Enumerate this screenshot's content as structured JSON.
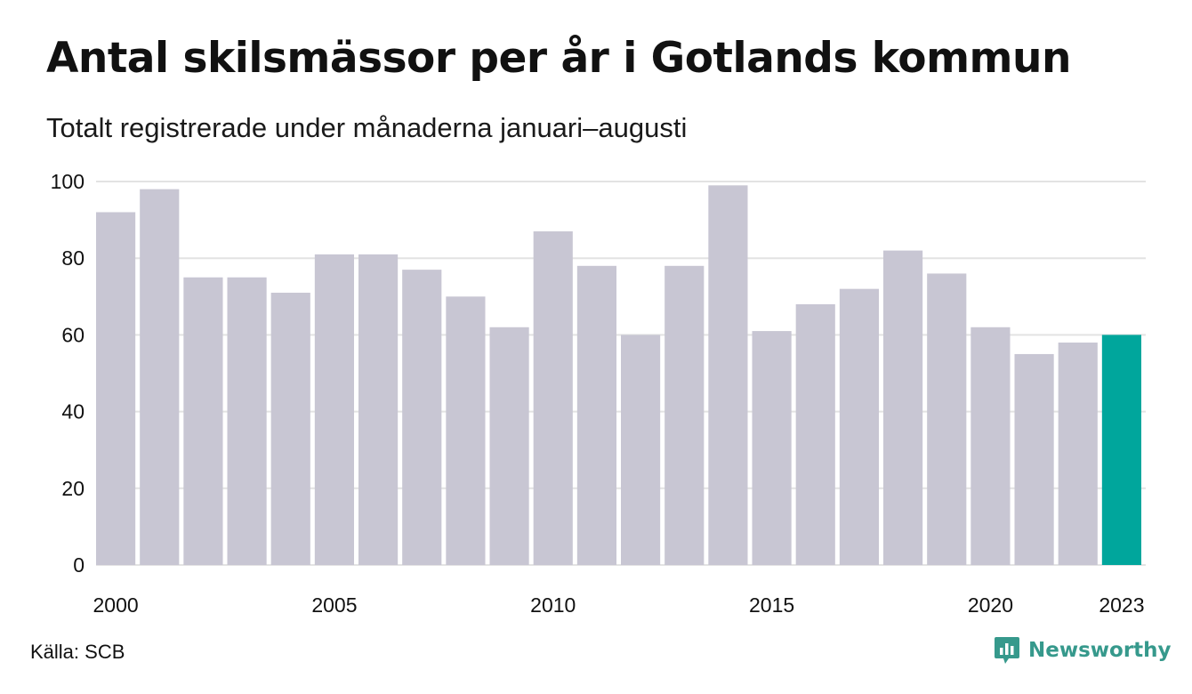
{
  "title": "Antal skilsmässor per år i Gotlands kommun",
  "subtitle": "Totalt registrerade under månaderna januari–augusti",
  "source": "Källa: SCB",
  "brand": "Newsworthy",
  "colors": {
    "bar": "#c8c6d3",
    "highlight": "#00a69c",
    "grid": "#e3e3e3",
    "brand": "#36998c"
  },
  "chart_data": {
    "type": "bar",
    "title": "Antal skilsmässor per år i Gotlands kommun",
    "subtitle": "Totalt registrerade under månaderna januari–augusti",
    "xlabel": "",
    "ylabel": "",
    "categories": [
      2000,
      2001,
      2002,
      2003,
      2004,
      2005,
      2006,
      2007,
      2008,
      2009,
      2010,
      2011,
      2012,
      2013,
      2014,
      2015,
      2016,
      2017,
      2018,
      2019,
      2020,
      2021,
      2022,
      2023
    ],
    "values": [
      92,
      98,
      75,
      75,
      71,
      81,
      81,
      77,
      70,
      62,
      87,
      78,
      60,
      78,
      99,
      61,
      68,
      72,
      82,
      76,
      62,
      55,
      58,
      60
    ],
    "highlight_category": 2023,
    "ylim": [
      0,
      100
    ],
    "yticks": [
      0,
      20,
      40,
      60,
      80,
      100
    ],
    "xtick_labels": [
      "2000",
      "2005",
      "2010",
      "2015",
      "2020",
      "2023"
    ],
    "grid": true,
    "legend": "none"
  }
}
